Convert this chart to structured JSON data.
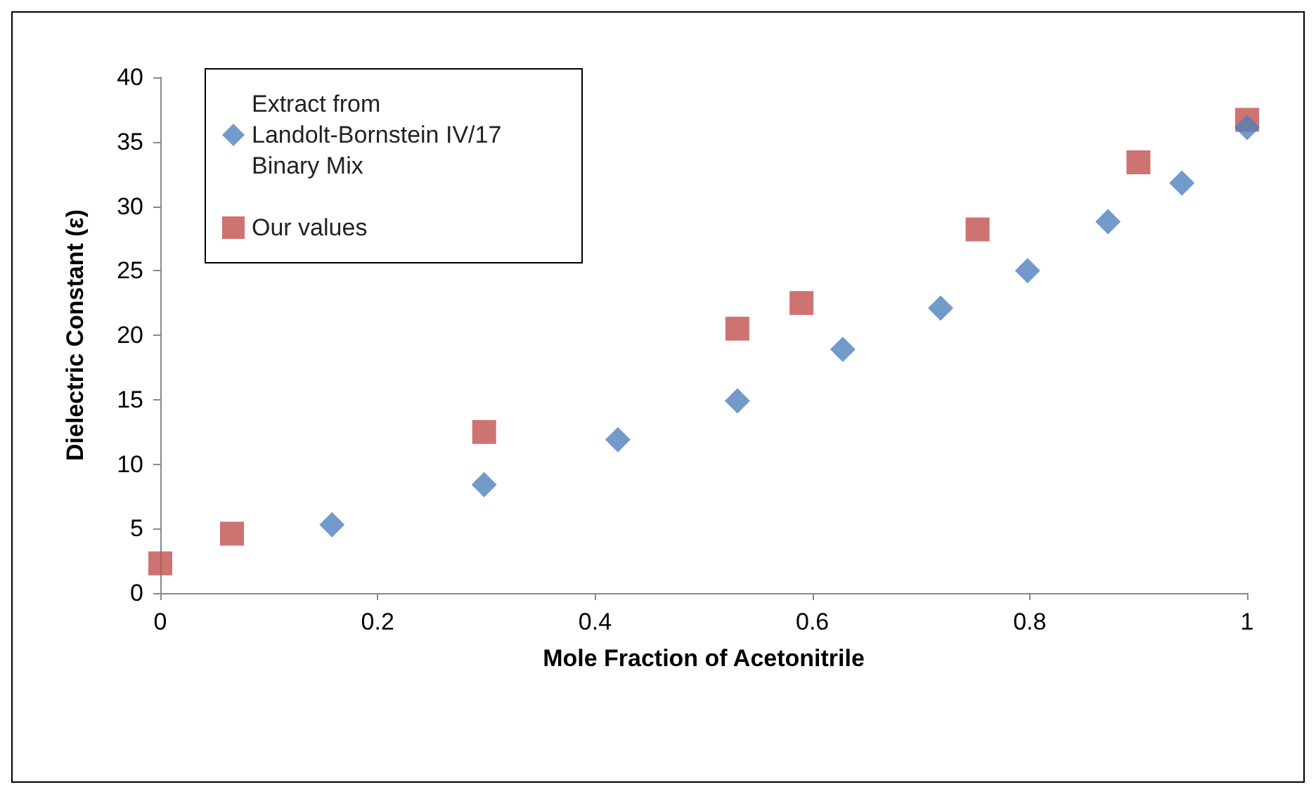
{
  "chart_data": {
    "type": "scatter",
    "xlabel": "Mole Fraction of Acetonitrile",
    "ylabel": "Dielectric Constant (ε)",
    "xlim": [
      0,
      1
    ],
    "xticks": [
      0,
      0.2,
      0.4,
      0.6,
      0.8,
      1
    ],
    "ylim": [
      0,
      40
    ],
    "yticks": [
      0,
      5,
      10,
      15,
      20,
      25,
      30,
      35,
      40
    ],
    "grid": false,
    "legend": "top left",
    "series": [
      {
        "name": "Extract from Landolt-Bornstein IV/17 Binary Mix",
        "color": "#4f81bd",
        "marker": "diamond",
        "x": [
          0.158,
          0.298,
          0.421,
          0.531,
          0.628,
          0.718,
          0.798,
          0.872,
          0.94,
          1.0
        ],
        "values": [
          5.3,
          8.4,
          11.9,
          14.9,
          18.9,
          22.1,
          25.0,
          28.8,
          31.8,
          36.1
        ]
      },
      {
        "name": "Our values",
        "color": "#c0504d",
        "marker": "square",
        "x": [
          0,
          0.066,
          0.298,
          0.531,
          0.59,
          0.752,
          0.9,
          1.0
        ],
        "values": [
          2.3,
          4.6,
          12.5,
          20.5,
          22.5,
          28.2,
          33.4,
          36.7
        ]
      }
    ]
  }
}
